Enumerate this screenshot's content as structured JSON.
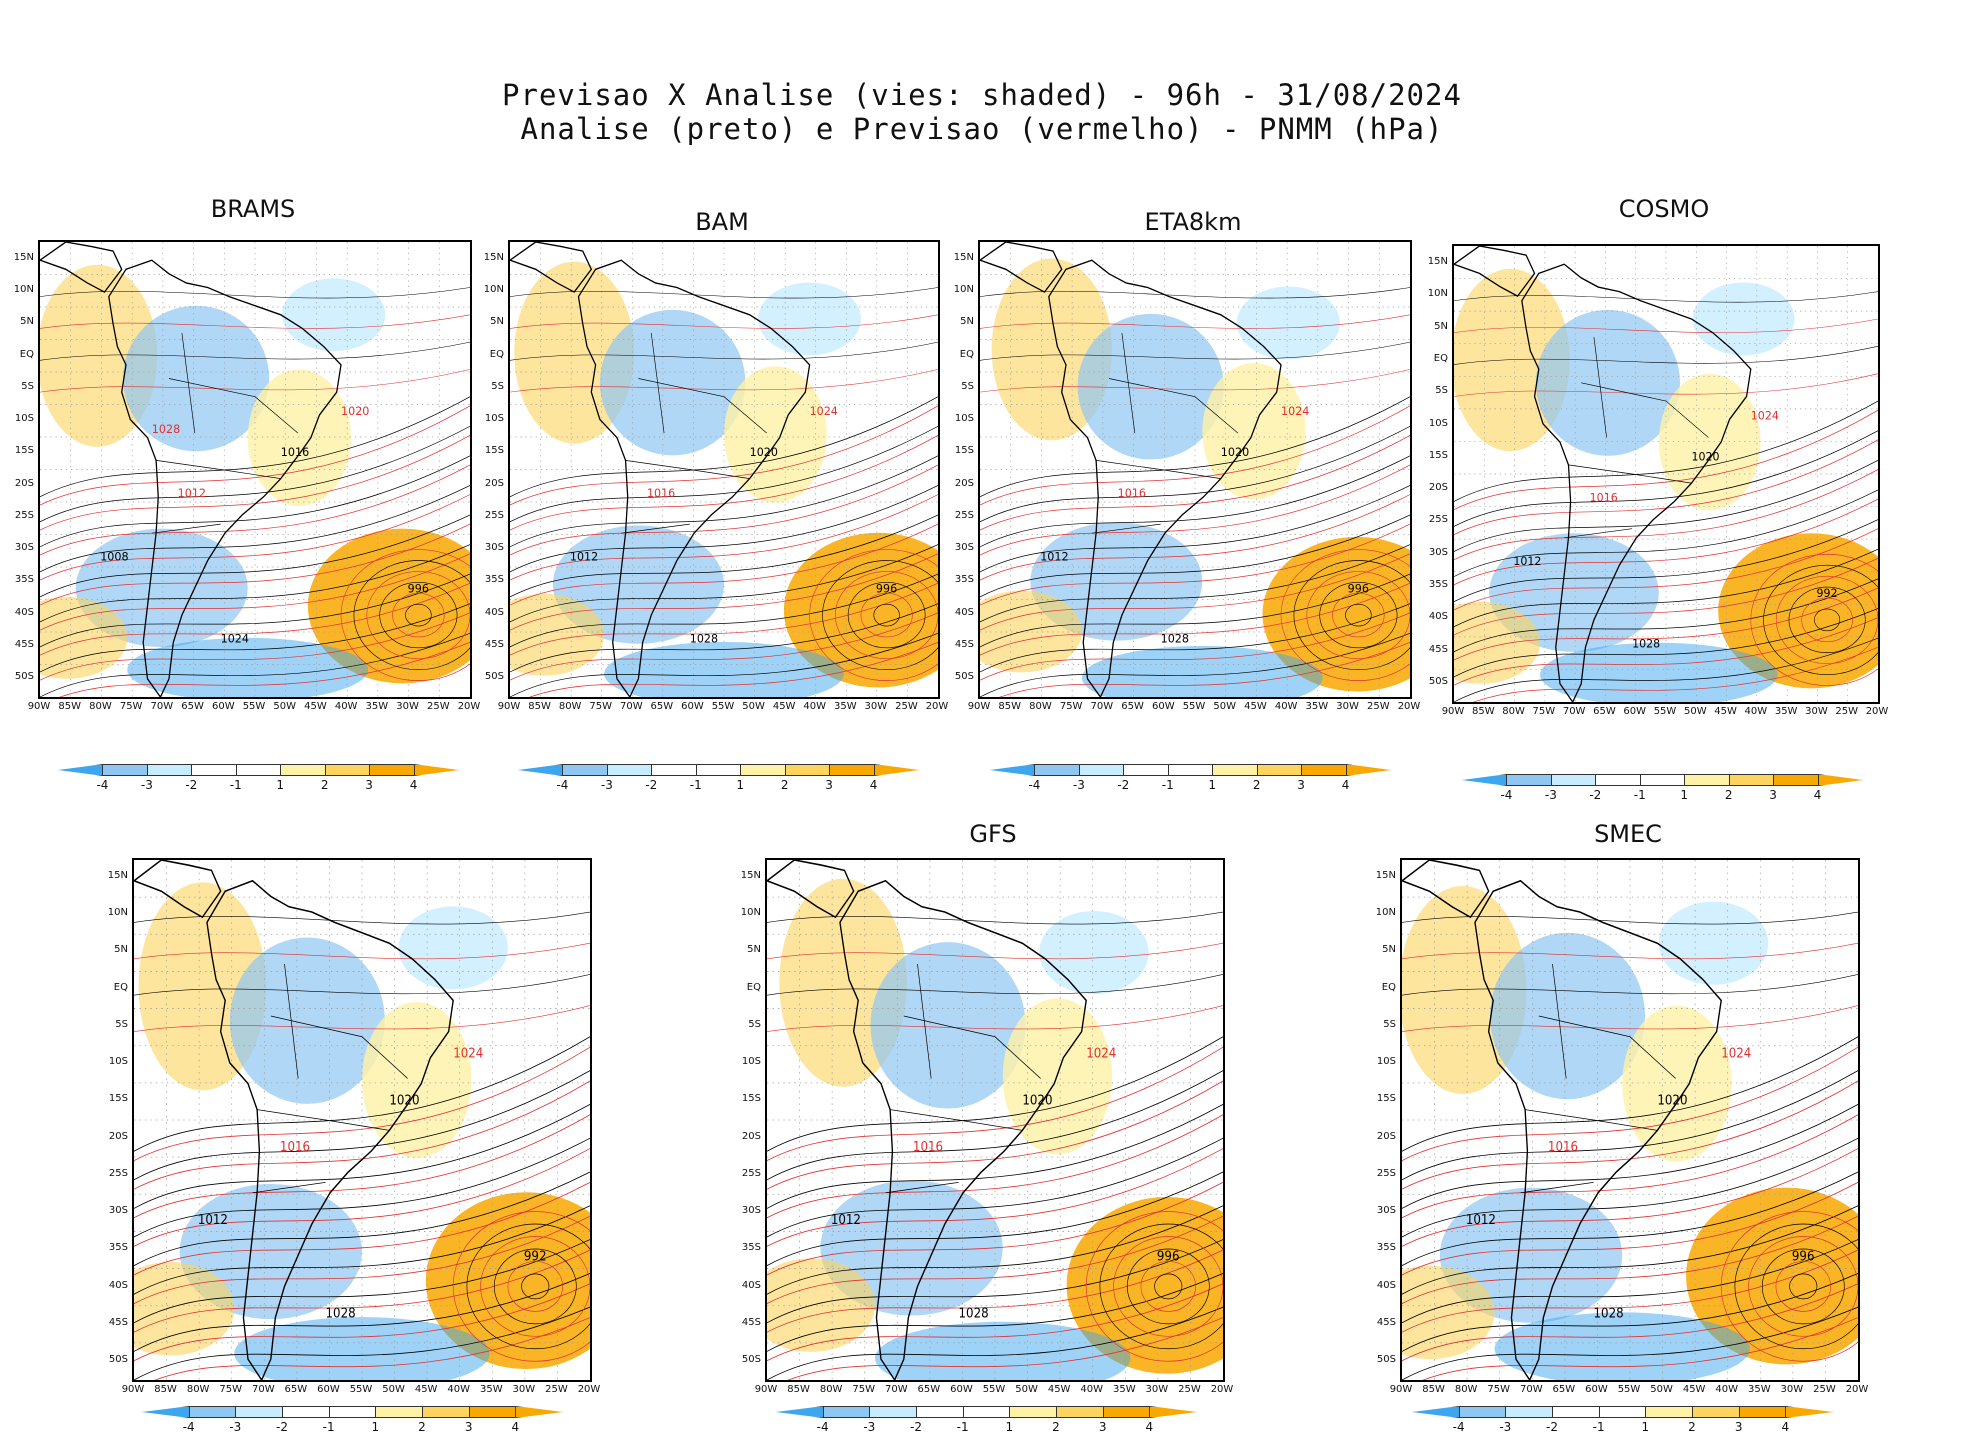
{
  "title": {
    "line1": "Previsao X Analise (vies: shaded) - 96h - 31/08/2024",
    "line2": "Analise (preto) e Previsao (vermelho) - PNMM (hPa)"
  },
  "colors": {
    "neg4": "#3da6ee",
    "neg3": "#8fc6f2",
    "neg2": "#c7ecff",
    "neg1": "#ffffff",
    "pos1": "#ffffff",
    "pos2": "#fff1a6",
    "pos3": "#fdd45e",
    "pos4": "#f9a800",
    "analysis_line": "#000000",
    "forecast_line": "#e03030",
    "grid": "#9a9a9a"
  },
  "colorbar": {
    "labels": [
      "-4",
      "-3",
      "-2",
      "-1",
      "1",
      "2",
      "3",
      "4"
    ]
  },
  "axes": {
    "lat_labels": [
      "15N",
      "10N",
      "5N",
      "EQ",
      "5S",
      "10S",
      "15S",
      "20S",
      "25S",
      "30S",
      "35S",
      "40S",
      "45S",
      "50S"
    ],
    "lon_labels": [
      "90W",
      "85W",
      "80W",
      "75W",
      "70W",
      "65W",
      "60W",
      "55W",
      "50W",
      "45W",
      "40W",
      "35W",
      "30W",
      "25W",
      "20W"
    ]
  },
  "panels": [
    {
      "name": "BRAMS",
      "title": "BRAMS",
      "low_label": "996",
      "isobar_labels": [
        "1008",
        "1012",
        "1016",
        "1020",
        "1024",
        "1028"
      ]
    },
    {
      "name": "BAM",
      "title": "BAM",
      "low_label": "996",
      "isobar_labels": [
        "1012",
        "1016",
        "1020",
        "1024",
        "1028"
      ]
    },
    {
      "name": "ETA8km",
      "title": "ETA8km",
      "low_label": "996",
      "isobar_labels": [
        "1012",
        "1016",
        "1020",
        "1024",
        "1028"
      ]
    },
    {
      "name": "COSMO",
      "title": "COSMO",
      "low_label": "992",
      "isobar_labels": [
        "1012",
        "1016",
        "1020",
        "1024",
        "1028"
      ]
    },
    {
      "name": "UNNAMED",
      "title": "",
      "low_label": "992",
      "isobar_labels": [
        "1012",
        "1016",
        "1020",
        "1024",
        "1028"
      ]
    },
    {
      "name": "GFS",
      "title": "GFS",
      "low_label": "996",
      "isobar_labels": [
        "1012",
        "1016",
        "1020",
        "1024",
        "1028"
      ]
    },
    {
      "name": "SMEC",
      "title": "SMEC",
      "low_label": "996",
      "isobar_labels": [
        "1012",
        "1016",
        "1020",
        "1024",
        "1028"
      ]
    }
  ]
}
